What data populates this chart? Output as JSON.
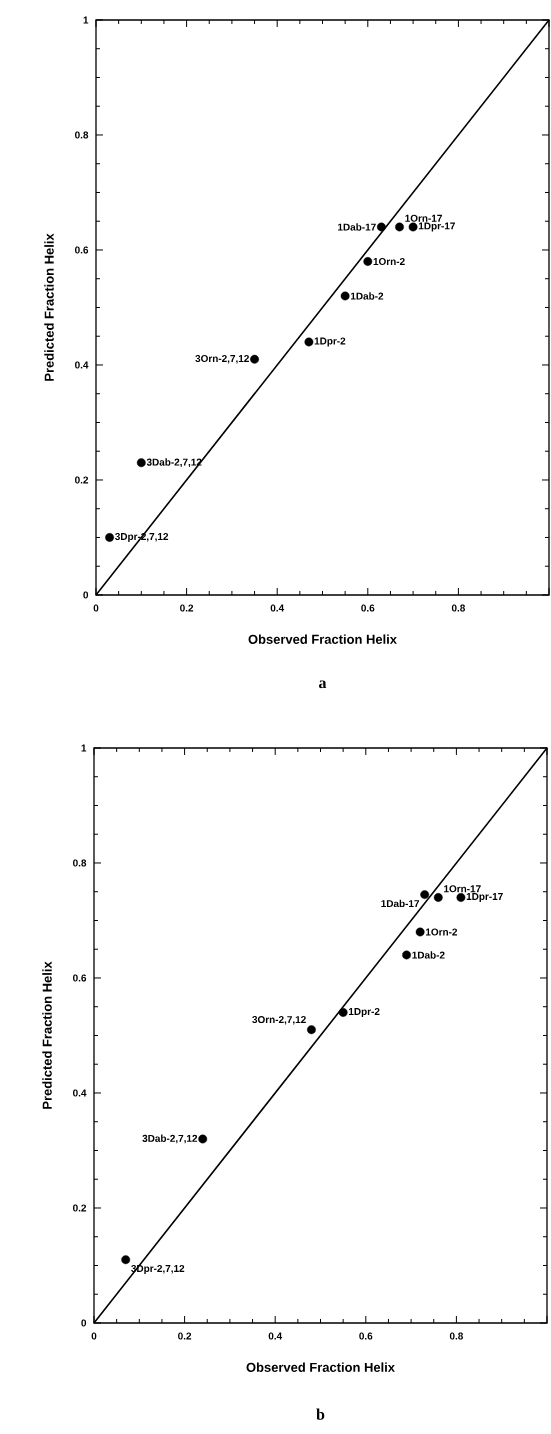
{
  "chart_data": [
    {
      "type": "scatter",
      "marker": "circle",
      "title": "a",
      "xlabel": "Observed Fraction Helix",
      "ylabel": "Predicted Fraction Helix",
      "xlim": [
        0,
        1
      ],
      "ylim": [
        0,
        1
      ],
      "xticks": [
        0,
        0.2,
        0.4,
        0.6,
        0.8,
        {
          "value": 1,
          "label": null
        }
      ],
      "yticks": [
        0,
        0.2,
        0.4,
        0.6,
        0.8,
        1
      ],
      "series": [
        {
          "color": "#000000",
          "x": [
            0.03,
            0.1,
            0.35,
            0.47,
            0.55,
            0.6,
            0.63,
            0.67,
            0.7
          ],
          "values": [
            0.1,
            0.23,
            0.41,
            0.44,
            0.52,
            0.58,
            0.64,
            0.64,
            0.64
          ]
        },
        {
          "type": "line",
          "marker": "none",
          "color": "#000000",
          "x": [
            0,
            1
          ],
          "values": [
            0,
            1
          ]
        }
      ],
      "annotations": [
        {
          "text": "3Dpr-2,7,12",
          "x": 0.03,
          "y": 0.1
        },
        {
          "text": "3Dab-2,7,12",
          "x": 0.1,
          "y": 0.23
        },
        {
          "text": "3Orn-2,7,12",
          "x": 0.35,
          "y": 0.41
        },
        {
          "text": "1Dpr-2",
          "x": 0.47,
          "y": 0.44
        },
        {
          "text": "1Dab-2",
          "x": 0.55,
          "y": 0.52
        },
        {
          "text": "1Orn-2",
          "x": 0.6,
          "y": 0.58
        },
        {
          "text": "1Dab-17",
          "x": 0.63,
          "y": 0.64
        },
        {
          "text": "1Orn-17",
          "x": 0.67,
          "y": 0.64
        },
        {
          "text": "1Dpr-17",
          "x": 0.7,
          "y": 0.64
        }
      ]
    },
    {
      "type": "scatter",
      "marker": "circle",
      "title": "b",
      "xlabel": "Observed Fraction Helix",
      "ylabel": "Predicted Fraction Helix",
      "xlim": [
        0,
        1
      ],
      "ylim": [
        0,
        1
      ],
      "xticks": [
        0,
        0.2,
        0.4,
        0.6,
        0.8,
        {
          "value": 1,
          "label": null
        }
      ],
      "yticks": [
        0,
        0.2,
        0.4,
        0.6,
        0.8,
        1
      ],
      "series": [
        {
          "color": "#000000",
          "x": [
            0.07,
            0.24,
            0.48,
            0.55,
            0.69,
            0.72,
            0.73,
            0.76,
            0.81
          ],
          "values": [
            0.11,
            0.32,
            0.51,
            0.54,
            0.64,
            0.68,
            0.745,
            0.74,
            0.74
          ]
        },
        {
          "type": "line",
          "marker": "none",
          "color": "#000000",
          "x": [
            0,
            1
          ],
          "values": [
            0,
            1
          ]
        }
      ],
      "annotations": [
        {
          "text": "3Dpr-2,7,12",
          "x": 0.07,
          "y": 0.11
        },
        {
          "text": "3Dab-2,7,12",
          "x": 0.24,
          "y": 0.32
        },
        {
          "text": "3Orn-2,7,12",
          "x": 0.48,
          "y": 0.51
        },
        {
          "text": "1Dpr-2",
          "x": 0.55,
          "y": 0.54
        },
        {
          "text": "1Dab-2",
          "x": 0.69,
          "y": 0.64
        },
        {
          "text": "1Orn-2",
          "x": 0.72,
          "y": 0.68
        },
        {
          "text": "1Dab-17",
          "x": 0.73,
          "y": 0.745
        },
        {
          "text": "1Orn-17",
          "x": 0.76,
          "y": 0.74
        },
        {
          "text": "1Dpr-17",
          "x": 0.81,
          "y": 0.74
        }
      ]
    }
  ]
}
